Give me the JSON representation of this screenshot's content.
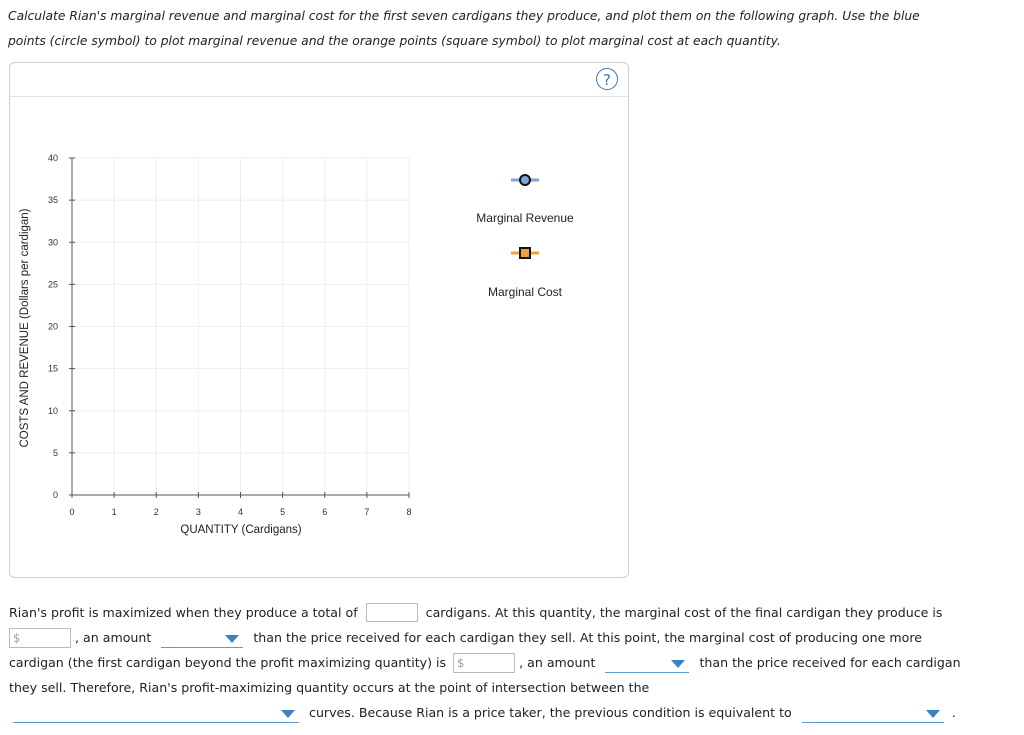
{
  "instructions": {
    "line1": "Calculate Rian's marginal revenue and marginal cost for the first seven cardigans they produce, and plot them on the following graph. Use the blue",
    "line2": "points (circle symbol) to plot marginal revenue and the orange points (square symbol) to plot marginal cost at each quantity."
  },
  "graph": {
    "help_label": "?",
    "ylabel": "COSTS AND REVENUE (Dollars per cardigan)",
    "xlabel": "QUANTITY (Cardigans)",
    "yticks": [
      "0",
      "5",
      "10",
      "15",
      "20",
      "25",
      "30",
      "35",
      "40"
    ],
    "xticks": [
      "0",
      "1",
      "2",
      "3",
      "4",
      "5",
      "6",
      "7",
      "8"
    ],
    "legend": {
      "mr_label": "Marginal Revenue",
      "mc_label": "Marginal Cost",
      "mr_color": "#7fa6d6",
      "mc_color": "#f0a23a"
    }
  },
  "chart_data": {
    "type": "scatter",
    "xlabel": "QUANTITY (Cardigans)",
    "ylabel": "COSTS AND REVENUE (Dollars per cardigan)",
    "xlim": [
      0,
      8
    ],
    "ylim": [
      0,
      40
    ],
    "grid": true,
    "series": [
      {
        "name": "Marginal Revenue",
        "marker": "circle",
        "x": [],
        "y": []
      },
      {
        "name": "Marginal Cost",
        "marker": "square",
        "x": [],
        "y": []
      }
    ],
    "legend_position": "right"
  },
  "question": {
    "l1_a": "Rian's profit is maximized when they produce a total of",
    "l1_b": "cardigans. At this quantity, the marginal cost of the final cardigan they produce is",
    "dollar": "$",
    "l2_a": ", an amount",
    "l2_b": "than the price received for each cardigan they sell. At this point, the marginal cost of producing one more",
    "l3_a": "cardigan (the first cardigan beyond the profit maximizing quantity) is",
    "l3_b": ", an amount",
    "l3_c": "than the price received for each cardigan",
    "l4": "they sell. Therefore, Rian's profit-maximizing quantity occurs at the point of intersection between the",
    "l5_a": "curves. Because Rian is a price taker, the previous condition is equivalent to",
    "l5_end": "."
  }
}
